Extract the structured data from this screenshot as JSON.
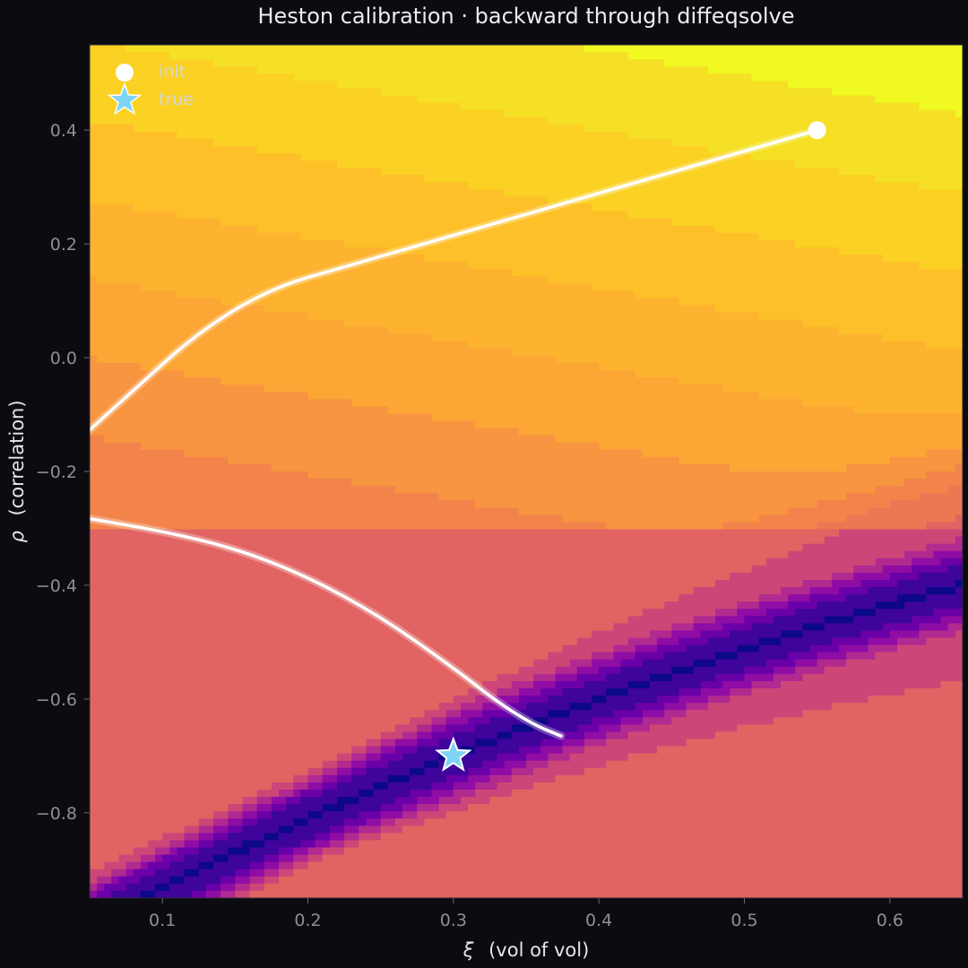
{
  "chart_data": {
    "type": "contour",
    "title": "Heston calibration · backward through diffeqsolve",
    "xlabel_symbol": "ξ",
    "xlabel": "(vol of vol)",
    "ylabel_symbol": "ρ",
    "ylabel": "(correlation)",
    "xlim": [
      0.05,
      0.65
    ],
    "ylim": [
      -0.95,
      0.55
    ],
    "xticks": [
      0.1,
      0.2,
      0.3,
      0.4,
      0.5,
      0.6
    ],
    "xtick_labels": [
      "0.1",
      "0.2",
      "0.3",
      "0.4",
      "0.5",
      "0.6"
    ],
    "yticks": [
      0.4,
      0.2,
      0.0,
      -0.2,
      -0.4,
      -0.6,
      -0.8
    ],
    "ytick_labels": [
      "0.4",
      "0.2",
      "0.0",
      "−0.2",
      "−0.4",
      "−0.6",
      "−0.8"
    ],
    "colormap": "plasma",
    "background": "#0b0b10",
    "legend": {
      "placement": "top-left",
      "entries": [
        {
          "label": "init",
          "marker": "circle",
          "color": "#ffffff"
        },
        {
          "label": "true",
          "marker": "star",
          "color": "#7fd4f5"
        }
      ]
    },
    "init": {
      "x": 0.55,
      "y": 0.4
    },
    "true": {
      "x": 0.3,
      "y": -0.7
    },
    "trajectory": {
      "color": "#ffffff",
      "segments": [
        [
          [
            0.55,
            0.4
          ],
          [
            0.45,
            0.326
          ],
          [
            0.35,
            0.252
          ],
          [
            0.25,
            0.178
          ],
          [
            0.15,
            0.104
          ],
          [
            0.05,
            -0.127
          ]
        ],
        [
          [
            0.05,
            -0.283
          ],
          [
            0.1,
            -0.305
          ],
          [
            0.15,
            -0.335
          ],
          [
            0.2,
            -0.385
          ],
          [
            0.25,
            -0.455
          ],
          [
            0.3,
            -0.545
          ],
          [
            0.33,
            -0.605
          ],
          [
            0.355,
            -0.645
          ],
          [
            0.374,
            -0.665
          ]
        ]
      ]
    }
  }
}
